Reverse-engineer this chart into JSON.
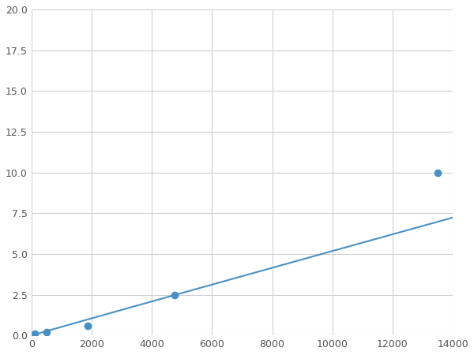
{
  "x": [
    125,
    500,
    1875,
    4750,
    13500
  ],
  "y": [
    0.1,
    0.2,
    0.6,
    2.5,
    10.0
  ],
  "line_color": "#4a90c4",
  "marker_color": "#4a90c4",
  "marker_size": 6,
  "xlim": [
    0,
    14000
  ],
  "ylim": [
    0,
    20.0
  ],
  "xticks": [
    0,
    2000,
    4000,
    6000,
    8000,
    10000,
    12000,
    14000
  ],
  "yticks": [
    0.0,
    2.5,
    5.0,
    7.5,
    10.0,
    12.5,
    15.0,
    17.5,
    20.0
  ],
  "xtick_labels": [
    "0",
    "2000",
    "4000",
    "6000",
    "8000",
    "10000",
    "12000",
    "14000"
  ],
  "ytick_labels": [
    "0.0",
    "2.5",
    "5.0",
    "7.5",
    "10.0",
    "12.5",
    "15.0",
    "17.5",
    "20.0"
  ],
  "grid": true,
  "grid_color": "#d0d0d0",
  "background_color": "#ffffff",
  "figure_background": "#ffffff",
  "linewidth": 1.5,
  "figsize": [
    6.0,
    4.5
  ],
  "dpi": 100
}
